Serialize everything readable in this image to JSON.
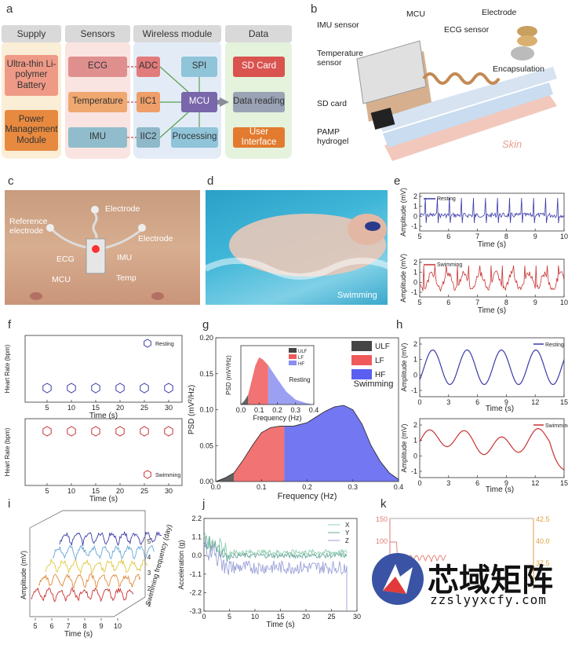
{
  "panels": {
    "a": "a",
    "b": "b",
    "c": "c",
    "d": "d",
    "e": "e",
    "f": "f",
    "g": "g",
    "h": "h",
    "i": "i",
    "j": "j",
    "k": "k"
  },
  "diagram": {
    "columns": [
      "Supply",
      "Sensors",
      "Wireless module",
      "Data"
    ],
    "supply": [
      "Ultra-thin Li-polymer Battery",
      "Power Management Module"
    ],
    "sensors": [
      "ECG",
      "Temperature",
      "IMU"
    ],
    "wireless": {
      "adc": "ADC",
      "spi": "SPI",
      "iic1": "IIC1",
      "mcu": "MCU",
      "iic2": "IIC2",
      "processing": "Processing"
    },
    "data": [
      "SD Card",
      "Data reading",
      "User Interface"
    ]
  },
  "exploded": {
    "labels": [
      "MCU",
      "Electrode",
      "IMU sensor",
      "ECG sensor",
      "Temperature sensor",
      "Encapsulation",
      "SD card",
      "PAMP hydrogel",
      "Skin"
    ]
  },
  "photo_c": {
    "labels": [
      "Electrode",
      "Reference electrode",
      "Electrode",
      "ECG",
      "IMU",
      "MCU",
      "Temp"
    ]
  },
  "photo_d": {
    "caption": "Swimming"
  },
  "colors": {
    "blue": "#3a3aa8",
    "red": "#c83232",
    "skin": "#e8b4a6",
    "mcu": "#7a66aa"
  },
  "chart_e": {
    "top": {
      "legend": "Resting",
      "ylabel": "Amplitude (mV)",
      "xlabel": "Time (s)",
      "x_ticks": [
        "5",
        "6",
        "7",
        "8",
        "9",
        "10"
      ],
      "y_ticks": [
        "2",
        "1",
        "0",
        "-1"
      ]
    },
    "bottom": {
      "legend": "Swimming",
      "ylabel": "Amplitude (mV)",
      "xlabel": "Time (s)",
      "x_ticks": [
        "5",
        "6",
        "7",
        "8",
        "9",
        "10"
      ],
      "y_ticks": [
        "2",
        "1",
        "0",
        "-1"
      ]
    }
  },
  "chart_data": [
    {
      "type": "scatter",
      "title": "",
      "xlabel": "Time (s)",
      "ylabel": "Heart Rate (bpm)",
      "series": [
        {
          "name": "Resting",
          "x": [
            5,
            10,
            15,
            20,
            25,
            30
          ],
          "y": [
            72,
            72,
            72,
            72,
            72,
            72
          ]
        }
      ],
      "xlim": [
        0,
        35
      ],
      "x_ticks": [
        "5",
        "10",
        "15",
        "20",
        "25",
        "30"
      ]
    },
    {
      "type": "scatter",
      "title": "",
      "xlabel": "Time (s)",
      "ylabel": "Heart Rate (bpm)",
      "series": [
        {
          "name": "Swimming",
          "x": [
            5,
            10,
            15,
            20,
            25,
            30
          ],
          "y": [
            135,
            135,
            135,
            135,
            135,
            135
          ]
        }
      ],
      "xlim": [
        0,
        35
      ],
      "x_ticks": [
        "5",
        "10",
        "15",
        "20",
        "25",
        "30"
      ]
    },
    {
      "type": "area",
      "title": "Swimming",
      "xlabel": "Frequency (Hz)",
      "ylabel": "PSD (mV²/Hz)",
      "bands": [
        {
          "name": "ULF",
          "range": [
            0,
            0.04
          ]
        },
        {
          "name": "LF",
          "range": [
            0.04,
            0.15
          ]
        },
        {
          "name": "HF",
          "range": [
            0.15,
            0.4
          ]
        }
      ],
      "x": [
        0,
        0.02,
        0.04,
        0.06,
        0.08,
        0.1,
        0.12,
        0.14,
        0.15,
        0.17,
        0.2,
        0.22,
        0.24,
        0.26,
        0.28,
        0.3,
        0.32,
        0.34,
        0.36,
        0.38,
        0.4
      ],
      "y": [
        0,
        0.005,
        0.012,
        0.03,
        0.05,
        0.068,
        0.075,
        0.077,
        0.077,
        0.077,
        0.082,
        0.09,
        0.098,
        0.104,
        0.106,
        0.1,
        0.08,
        0.05,
        0.028,
        0.012,
        0.003
      ],
      "xlim": [
        0,
        0.4
      ],
      "ylim": [
        0,
        0.2
      ],
      "x_ticks": [
        "0.0",
        "0.1",
        "0.2",
        "0.3",
        "0.4"
      ],
      "y_ticks": [
        "0.00",
        "0.05",
        "0.10",
        "0.15",
        "0.20"
      ]
    },
    {
      "type": "area",
      "title": "Resting",
      "xlabel": "Frequency (Hz)",
      "ylabel": "PSD (mV²/Hz)",
      "x": [
        0,
        0.02,
        0.04,
        0.06,
        0.08,
        0.1,
        0.12,
        0.15,
        0.2,
        0.25,
        0.3,
        0.35,
        0.4
      ],
      "y": [
        0,
        0.004,
        0.01,
        0.025,
        0.04,
        0.048,
        0.046,
        0.04,
        0.026,
        0.013,
        0.005,
        0.002,
        0
      ],
      "xlim": [
        0,
        0.4
      ],
      "ylim": [
        0,
        0.06
      ],
      "x_ticks": [
        "0.0",
        "0.1",
        "0.2",
        "0.3",
        "0.4"
      ],
      "legend": [
        "ULF",
        "LF",
        "HF"
      ]
    },
    {
      "type": "line",
      "xlabel": "Time (s)",
      "ylabel": "Amplitude (mV)",
      "series": [
        {
          "name": "Resting"
        }
      ],
      "xlim": [
        0,
        15
      ],
      "x_ticks": [
        "0",
        "3",
        "6",
        "9",
        "12",
        "15"
      ],
      "y_ticks": [
        "2",
        "1",
        "0",
        "-1"
      ]
    },
    {
      "type": "line",
      "xlabel": "Time (s)",
      "ylabel": "Amplitude (mV)",
      "series": [
        {
          "name": "Swimming"
        }
      ],
      "xlim": [
        0,
        15
      ],
      "x_ticks": [
        "0",
        "3",
        "6",
        "9",
        "12",
        "15"
      ],
      "y_ticks": [
        "2",
        "1",
        "0",
        "-1"
      ]
    },
    {
      "type": "line",
      "xlabel": "Time (s)",
      "ylabel": "Amplitude (mV)",
      "zlabel": "Swimming frequency (day)",
      "x_ticks": [
        "5",
        "6",
        "7",
        "8",
        "9",
        "10"
      ],
      "z_ticks": [
        "1",
        "2",
        "3",
        "4",
        "5"
      ]
    },
    {
      "type": "line",
      "xlabel": "Time (s)",
      "ylabel": "Acceleration (g)",
      "series": [
        {
          "name": "X"
        },
        {
          "name": "Y"
        },
        {
          "name": "Z"
        }
      ],
      "xlim": [
        0,
        30
      ],
      "ylim": [
        -3.3,
        2.2
      ],
      "x_ticks": [
        "0",
        "5",
        "10",
        "15",
        "20",
        "25",
        "30"
      ],
      "y_ticks": [
        "2.2",
        "1.1",
        "0.0",
        "-1.1",
        "-2.2",
        "-3.3"
      ]
    },
    {
      "type": "line",
      "y_ticks_left": [
        "150",
        "100",
        "50"
      ],
      "y_ticks_right": [
        "42.5",
        "40.0",
        "37.5"
      ]
    }
  ],
  "watermark": {
    "name": "芯域矩阵",
    "url": "zzslyyxcfy.com"
  }
}
